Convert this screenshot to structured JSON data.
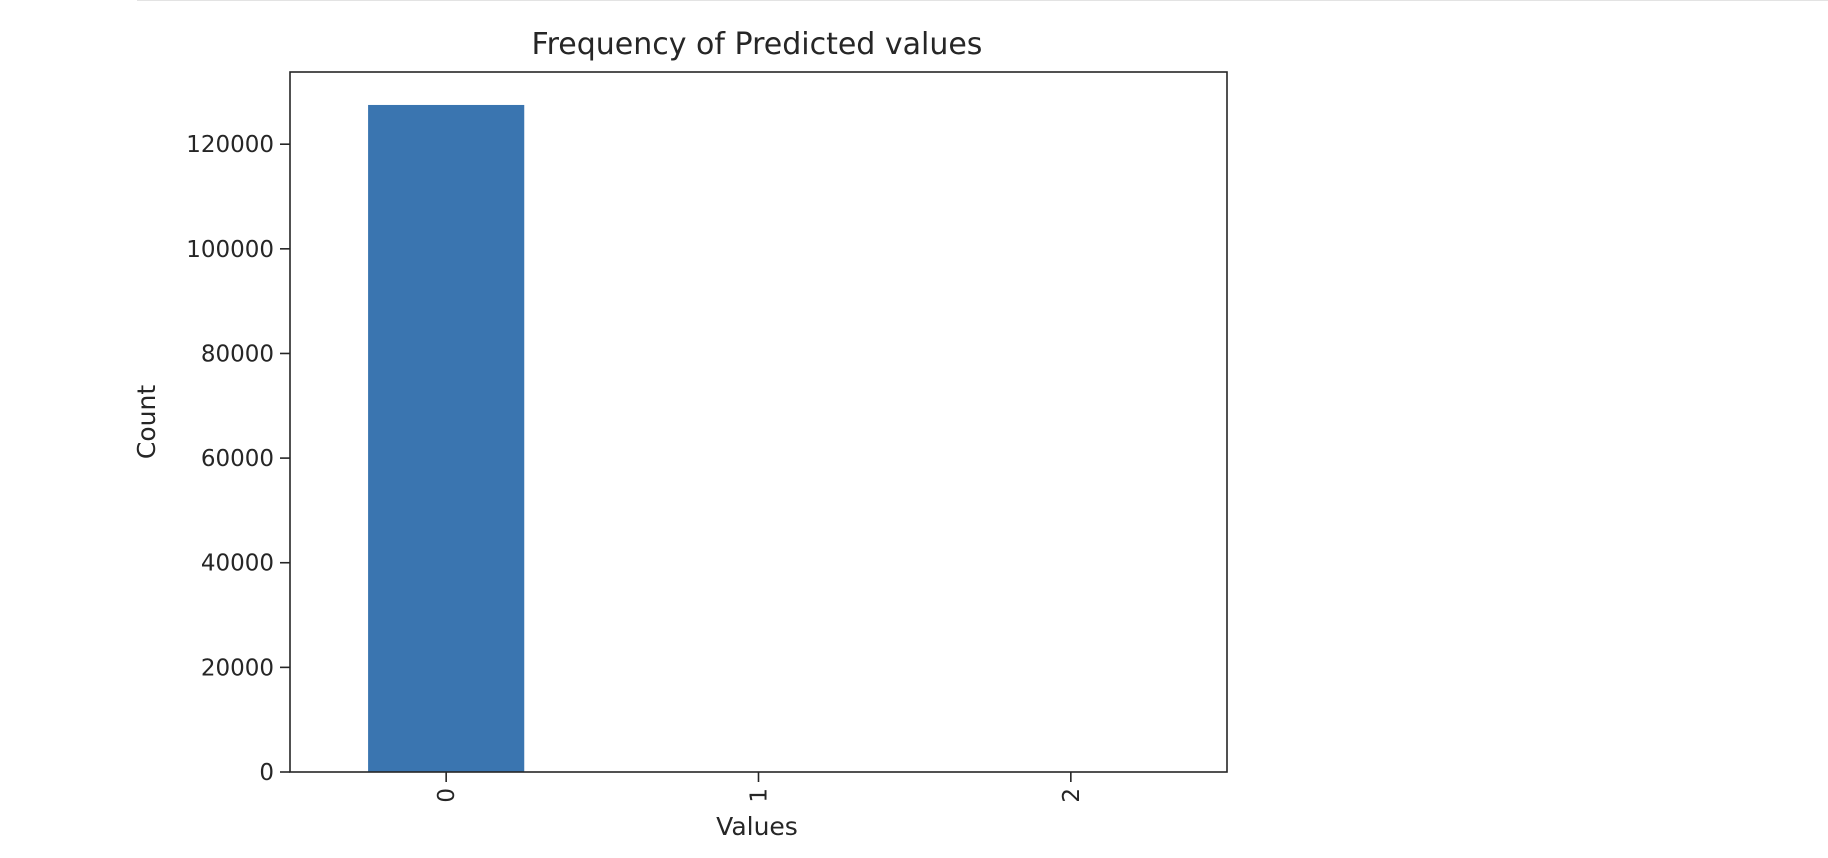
{
  "chart_data": {
    "type": "bar",
    "title": "Frequency of Predicted values",
    "xlabel": "Values",
    "ylabel": "Count",
    "categories": [
      "0",
      "1",
      "2"
    ],
    "values": [
      127500,
      0,
      0
    ],
    "ylim": [
      0,
      133800
    ],
    "yticks": [
      0,
      20000,
      40000,
      60000,
      80000,
      100000,
      120000
    ],
    "ytick_labels": [
      "0",
      "20000",
      "40000",
      "60000",
      "80000",
      "100000",
      "120000"
    ],
    "xtick_rotation": "vertical",
    "grid": false,
    "legend": "none",
    "bar_color": "#3a75b0"
  }
}
